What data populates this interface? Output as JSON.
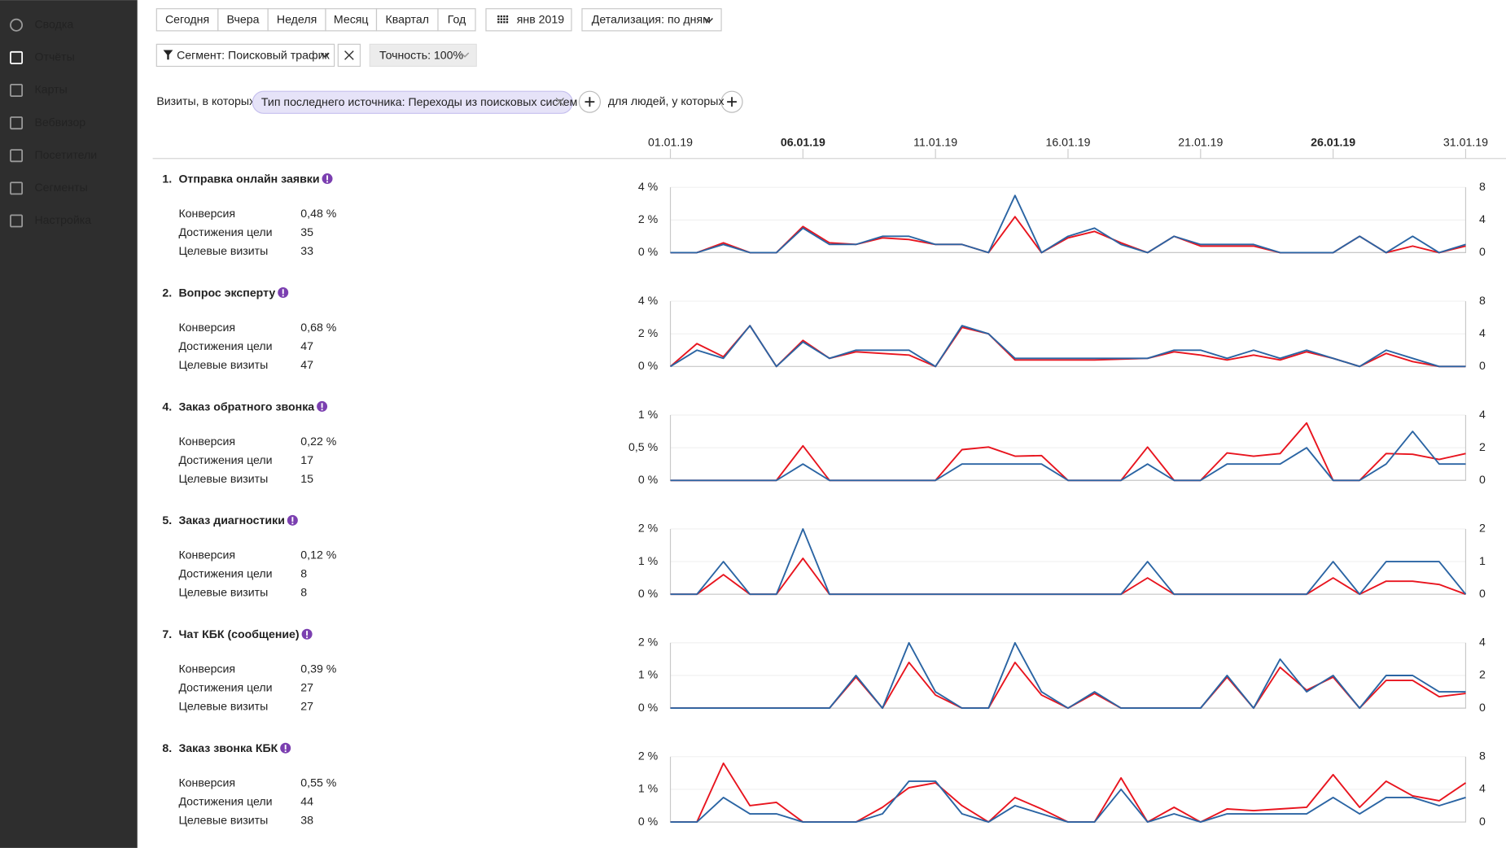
{
  "sidebar": {
    "items": [
      "Сводка",
      "Отчёты",
      "Карты",
      "Вебвизор",
      "Посетители",
      "Сегменты",
      "Настройка"
    ],
    "active": 1
  },
  "toolbar": {
    "periods": [
      "Сегодня",
      "Вчера",
      "Неделя",
      "Месяц",
      "Квартал",
      "Год"
    ],
    "month": "янв 2019",
    "detail": "Детализация: по дням"
  },
  "segment": {
    "label": "Сегмент: Поисковый трафик",
    "accuracy": "Точность: 100%"
  },
  "filter": {
    "prefix": "Визиты, в которых",
    "chip": "Тип последнего источника: Переходы из поисковых систем",
    "people": "для людей, у которых"
  },
  "timeline": {
    "categories": [
      "01.01.19",
      null,
      null,
      null,
      null,
      "06.01.19",
      null,
      null,
      null,
      null,
      "11.01.19",
      null,
      null,
      null,
      null,
      "16.01.19",
      null,
      null,
      null,
      null,
      "21.01.19",
      null,
      null,
      null,
      null,
      "26.01.19",
      null,
      null,
      null,
      null,
      "31.01.19"
    ],
    "red_ticks": [
      5,
      25
    ]
  },
  "goals": [
    {
      "number": "1.",
      "name": "Отправка онлайн заявки",
      "metrics": [
        {
          "label": "Конверсия",
          "value": "0,48 %"
        },
        {
          "label": "Достижения цели",
          "value": "35"
        },
        {
          "label": "Целевые визиты",
          "value": "33"
        }
      ],
      "chart_data": {
        "type": "line",
        "ylim": [
          0,
          4
        ],
        "yticks": [
          {
            "value": 0,
            "label": "0 %"
          },
          {
            "value": 2,
            "label": "2 %"
          },
          {
            "value": 4,
            "label": "4 %"
          }
        ],
        "y2lim": [
          0,
          8
        ],
        "y2ticks": [
          0,
          4,
          8
        ],
        "series": [
          {
            "color": "#e8141e",
            "values": [
              0,
              0,
              0.6,
              0,
              0,
              1.6,
              0.6,
              0.5,
              0.9,
              0.8,
              0.5,
              0.5,
              0,
              2.2,
              0,
              0.9,
              1.3,
              0.6,
              0,
              1.0,
              0.4,
              0.4,
              0.4,
              0,
              0,
              0,
              1.0,
              0,
              0.4,
              0,
              0.4
            ]
          },
          {
            "color": "#2a64a3",
            "axis": "y2",
            "values": [
              0,
              0,
              1,
              0,
              0,
              3,
              1,
              1,
              2,
              2,
              1,
              1,
              0,
              7,
              0,
              2,
              3,
              1,
              0,
              2,
              1,
              1,
              1,
              0,
              0,
              0,
              2,
              0,
              2,
              0,
              1
            ]
          }
        ]
      }
    },
    {
      "number": "2.",
      "name": "Вопрос эксперту",
      "metrics": [
        {
          "label": "Конверсия",
          "value": "0,68 %"
        },
        {
          "label": "Достижения цели",
          "value": "47"
        },
        {
          "label": "Целевые визиты",
          "value": "47"
        }
      ],
      "chart_data": {
        "type": "line",
        "ylim": [
          0,
          4
        ],
        "yticks": [
          {
            "value": 0,
            "label": "0 %"
          },
          {
            "value": 2,
            "label": "2 %"
          },
          {
            "value": 4,
            "label": "4 %"
          }
        ],
        "y2lim": [
          0,
          8
        ],
        "y2ticks": [
          0,
          4,
          8
        ],
        "series": [
          {
            "color": "#e8141e",
            "values": [
              0,
              1.4,
              0.6,
              2.5,
              0,
              1.6,
              0.5,
              0.9,
              0.8,
              0.7,
              0,
              2.4,
              2.0,
              0.4,
              0.4,
              0.4,
              0.4,
              0.45,
              0.5,
              0.9,
              0.7,
              0.4,
              0.7,
              0.4,
              0.9,
              0.5,
              0,
              0.8,
              0.3,
              0,
              0
            ]
          },
          {
            "color": "#2a64a3",
            "axis": "y2",
            "values": [
              0,
              2,
              1,
              5,
              0,
              3,
              1,
              2,
              2,
              2,
              0,
              5,
              4,
              1,
              1,
              1,
              1,
              1,
              1,
              2,
              2,
              1,
              2,
              1,
              2,
              1,
              0,
              2,
              1,
              0,
              0
            ]
          }
        ]
      }
    },
    {
      "number": "4.",
      "name": "Заказ обратного звонка",
      "metrics": [
        {
          "label": "Конверсия",
          "value": "0,22 %"
        },
        {
          "label": "Достижения цели",
          "value": "17"
        },
        {
          "label": "Целевые визиты",
          "value": "15"
        }
      ],
      "chart_data": {
        "type": "line",
        "ylim": [
          0,
          1
        ],
        "yticks": [
          {
            "value": 0,
            "label": "0 %"
          },
          {
            "value": 0.5,
            "label": "0,5 %"
          },
          {
            "value": 1,
            "label": "1 %"
          }
        ],
        "y2lim": [
          0,
          4
        ],
        "y2ticks": [
          0,
          2,
          4
        ],
        "series": [
          {
            "color": "#e8141e",
            "values": [
              0,
              0,
              0,
              0,
              0,
              0.53,
              0,
              0,
              0,
              0,
              0,
              0.47,
              0.51,
              0.37,
              0.38,
              0,
              0,
              0,
              0.51,
              0,
              0,
              0.42,
              0.37,
              0.41,
              0.88,
              0,
              0,
              0.41,
              0.4,
              0.32,
              0.41
            ]
          },
          {
            "color": "#2a64a3",
            "axis": "y2",
            "values": [
              0,
              0,
              0,
              0,
              0,
              1,
              0,
              0,
              0,
              0,
              0,
              1,
              1,
              1,
              1,
              0,
              0,
              0,
              1,
              0,
              0,
              1,
              1,
              1,
              2,
              0,
              0,
              1,
              3,
              1,
              1
            ]
          }
        ]
      }
    },
    {
      "number": "5.",
      "name": "Заказ диагностики",
      "metrics": [
        {
          "label": "Конверсия",
          "value": "0,12 %"
        },
        {
          "label": "Достижения цели",
          "value": "8"
        },
        {
          "label": "Целевые визиты",
          "value": "8"
        }
      ],
      "chart_data": {
        "type": "line",
        "ylim": [
          0,
          2
        ],
        "yticks": [
          {
            "value": 0,
            "label": "0 %"
          },
          {
            "value": 1,
            "label": "1 %"
          },
          {
            "value": 2,
            "label": "2 %"
          }
        ],
        "y2lim": [
          0,
          2
        ],
        "y2ticks": [
          0,
          1,
          2
        ],
        "series": [
          {
            "color": "#e8141e",
            "values": [
              0,
              0,
              0.6,
              0,
              0,
              1.1,
              0,
              0,
              0,
              0,
              0,
              0,
              0,
              0,
              0,
              0,
              0,
              0,
              0.5,
              0,
              0,
              0,
              0,
              0,
              0,
              0.5,
              0,
              0.4,
              0.4,
              0.3,
              0
            ]
          },
          {
            "color": "#2a64a3",
            "axis": "y2",
            "values": [
              0,
              0,
              1,
              0,
              0,
              2,
              0,
              0,
              0,
              0,
              0,
              0,
              0,
              0,
              0,
              0,
              0,
              0,
              1,
              0,
              0,
              0,
              0,
              0,
              0,
              1,
              0,
              1,
              1,
              1,
              0
            ]
          }
        ]
      }
    },
    {
      "number": "7.",
      "name": "Чат КБК (сообщение)",
      "metrics": [
        {
          "label": "Конверсия",
          "value": "0,39 %"
        },
        {
          "label": "Достижения цели",
          "value": "27"
        },
        {
          "label": "Целевые визиты",
          "value": "27"
        }
      ],
      "chart_data": {
        "type": "line",
        "ylim": [
          0,
          2
        ],
        "yticks": [
          {
            "value": 0,
            "label": "0 %"
          },
          {
            "value": 1,
            "label": "1 %"
          },
          {
            "value": 2,
            "label": "2 %"
          }
        ],
        "y2lim": [
          0,
          4
        ],
        "y2ticks": [
          0,
          2,
          4
        ],
        "series": [
          {
            "color": "#e8141e",
            "values": [
              0,
              0,
              0,
              0,
              0,
              0,
              0,
              0.95,
              0,
              1.4,
              0.4,
              0,
              0,
              1.4,
              0.4,
              0,
              0.45,
              0,
              0,
              0,
              0,
              0.95,
              0,
              1.25,
              0.55,
              0.95,
              0,
              0.85,
              0.85,
              0.35,
              0.45
            ]
          },
          {
            "color": "#2a64a3",
            "axis": "y2",
            "values": [
              0,
              0,
              0,
              0,
              0,
              0,
              0,
              2,
              0,
              4,
              1,
              0,
              0,
              4,
              1,
              0,
              1,
              0,
              0,
              0,
              0,
              2,
              0,
              3,
              1,
              2,
              0,
              2,
              2,
              1,
              1
            ]
          }
        ]
      }
    },
    {
      "number": "8.",
      "name": "Заказ звонка КБК",
      "metrics": [
        {
          "label": "Конверсия",
          "value": "0,55 %"
        },
        {
          "label": "Достижения цели",
          "value": "44"
        },
        {
          "label": "Целевые визиты",
          "value": "38"
        }
      ],
      "chart_data": {
        "type": "line",
        "ylim": [
          0,
          2
        ],
        "yticks": [
          {
            "value": 0,
            "label": "0 %"
          },
          {
            "value": 1,
            "label": "1 %"
          },
          {
            "value": 2,
            "label": "2 %"
          }
        ],
        "y2lim": [
          0,
          8
        ],
        "y2ticks": [
          0,
          4,
          8
        ],
        "series": [
          {
            "color": "#e8141e",
            "values": [
              0,
              0,
              1.8,
              0.5,
              0.6,
              0,
              0,
              0,
              0.45,
              1.05,
              1.2,
              0.5,
              0,
              0.75,
              0.4,
              0,
              0,
              1.35,
              0,
              0.45,
              0,
              0.4,
              0.35,
              0.4,
              0.45,
              1.45,
              0.45,
              1.25,
              0.8,
              0.65,
              1.2
            ]
          },
          {
            "color": "#2a64a3",
            "axis": "y2",
            "values": [
              0,
              0,
              3,
              1,
              1,
              0,
              0,
              0,
              1,
              5,
              5,
              1,
              0,
              2,
              1,
              0,
              0,
              4,
              0,
              1,
              0,
              1,
              1,
              1,
              1,
              3,
              1,
              3,
              3,
              2,
              3
            ]
          }
        ]
      }
    }
  ]
}
